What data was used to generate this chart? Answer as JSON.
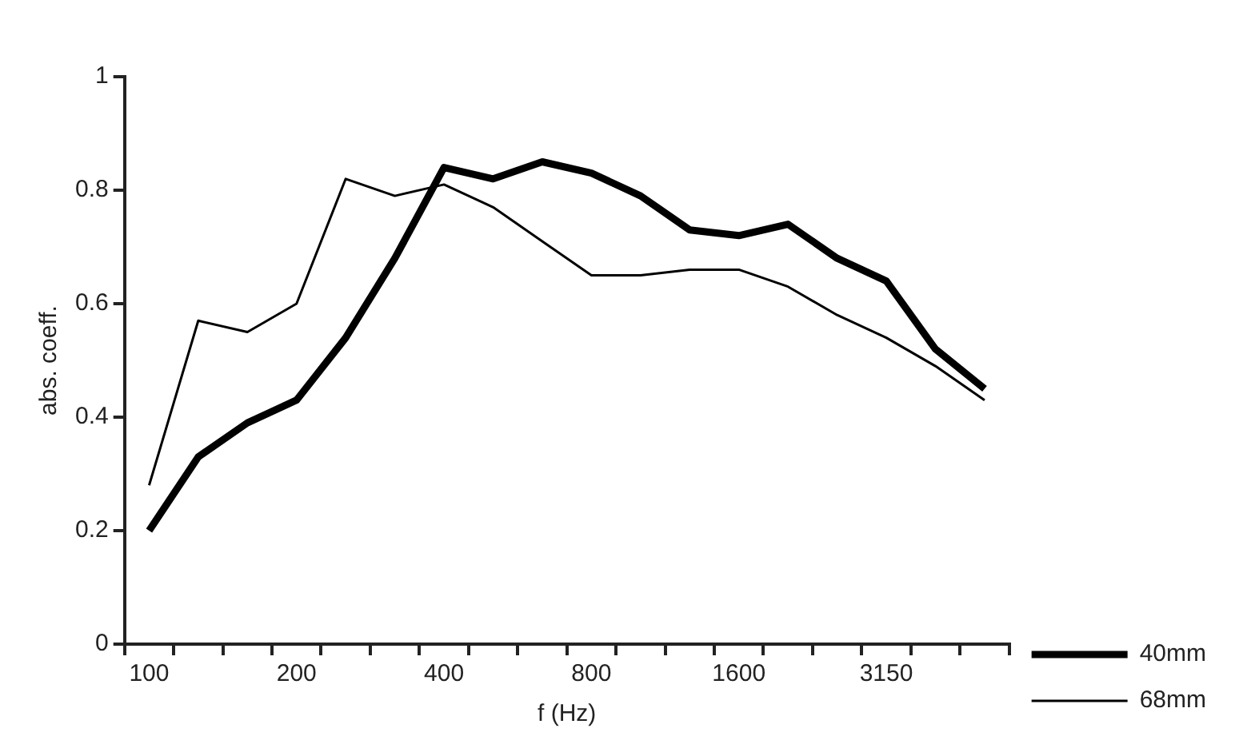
{
  "chart_data": {
    "type": "line",
    "xlabel": "f (Hz)",
    "ylabel": "abs. coeff.",
    "categories": [
      "100",
      null,
      null,
      "200",
      null,
      null,
      "400",
      null,
      null,
      "800",
      null,
      null,
      "1600",
      null,
      null,
      "3150",
      null,
      null
    ],
    "series": [
      {
        "name": "40mm",
        "color": "#000000",
        "values": [
          0.2,
          0.33,
          0.39,
          0.43,
          0.54,
          0.68,
          0.84,
          0.82,
          0.85,
          0.83,
          0.79,
          0.73,
          0.72,
          0.74,
          0.68,
          0.64,
          0.52,
          0.45
        ]
      },
      {
        "name": "68mm",
        "color": "#000000",
        "values": [
          0.28,
          0.57,
          0.55,
          0.6,
          0.82,
          0.79,
          0.81,
          0.77,
          0.71,
          0.65,
          0.65,
          0.66,
          0.66,
          0.63,
          0.58,
          0.54,
          0.49,
          0.43
        ]
      }
    ],
    "ylim": [
      0,
      1
    ],
    "yticks": [
      0,
      0.2,
      0.4,
      0.6,
      0.8,
      1
    ],
    "grid": false,
    "legend": "bottom right",
    "marker": "none",
    "line_style": "solid"
  }
}
